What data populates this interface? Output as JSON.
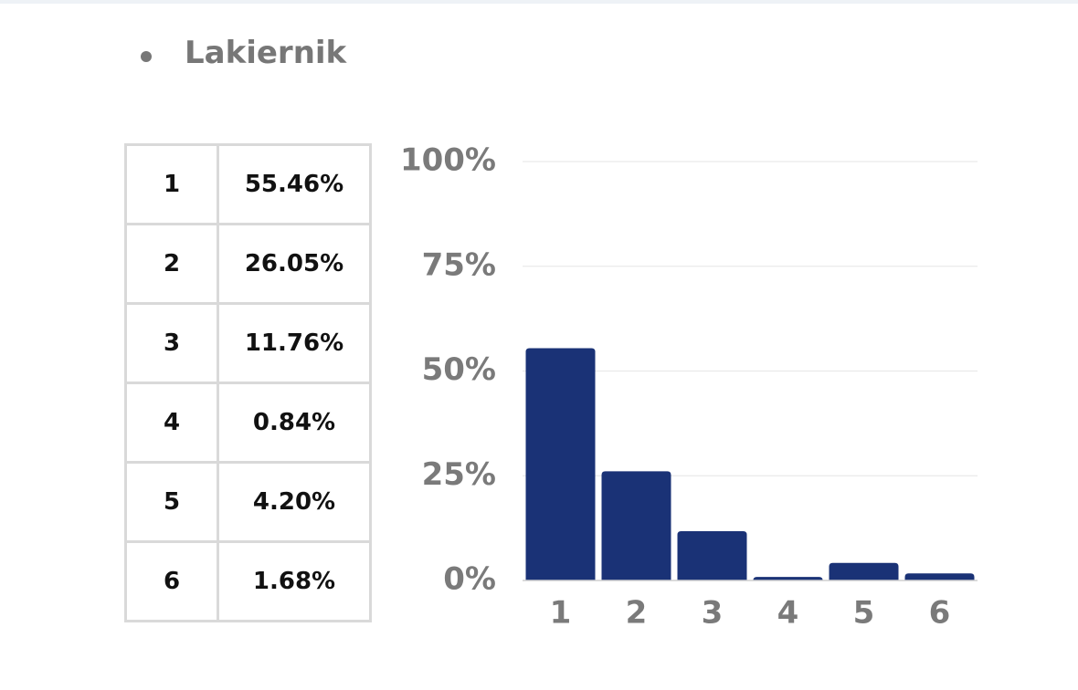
{
  "heading": "Lakiernik",
  "chart_data": {
    "type": "bar",
    "categories": [
      "1",
      "2",
      "3",
      "4",
      "5",
      "6"
    ],
    "values": [
      55.46,
      26.05,
      11.76,
      0.84,
      4.2,
      1.68
    ],
    "value_labels": [
      "55.46%",
      "26.05%",
      "11.76%",
      "0.84%",
      "4.20%",
      "1.68%"
    ],
    "color": "#1a3276",
    "ylim": [
      0,
      100
    ],
    "yticks": [
      {
        "value": 0,
        "label": "0%"
      },
      {
        "value": 25,
        "label": "25%"
      },
      {
        "value": 50,
        "label": "50%"
      },
      {
        "value": 75,
        "label": "75%"
      },
      {
        "value": 100,
        "label": "100%"
      }
    ],
    "grid": true
  }
}
